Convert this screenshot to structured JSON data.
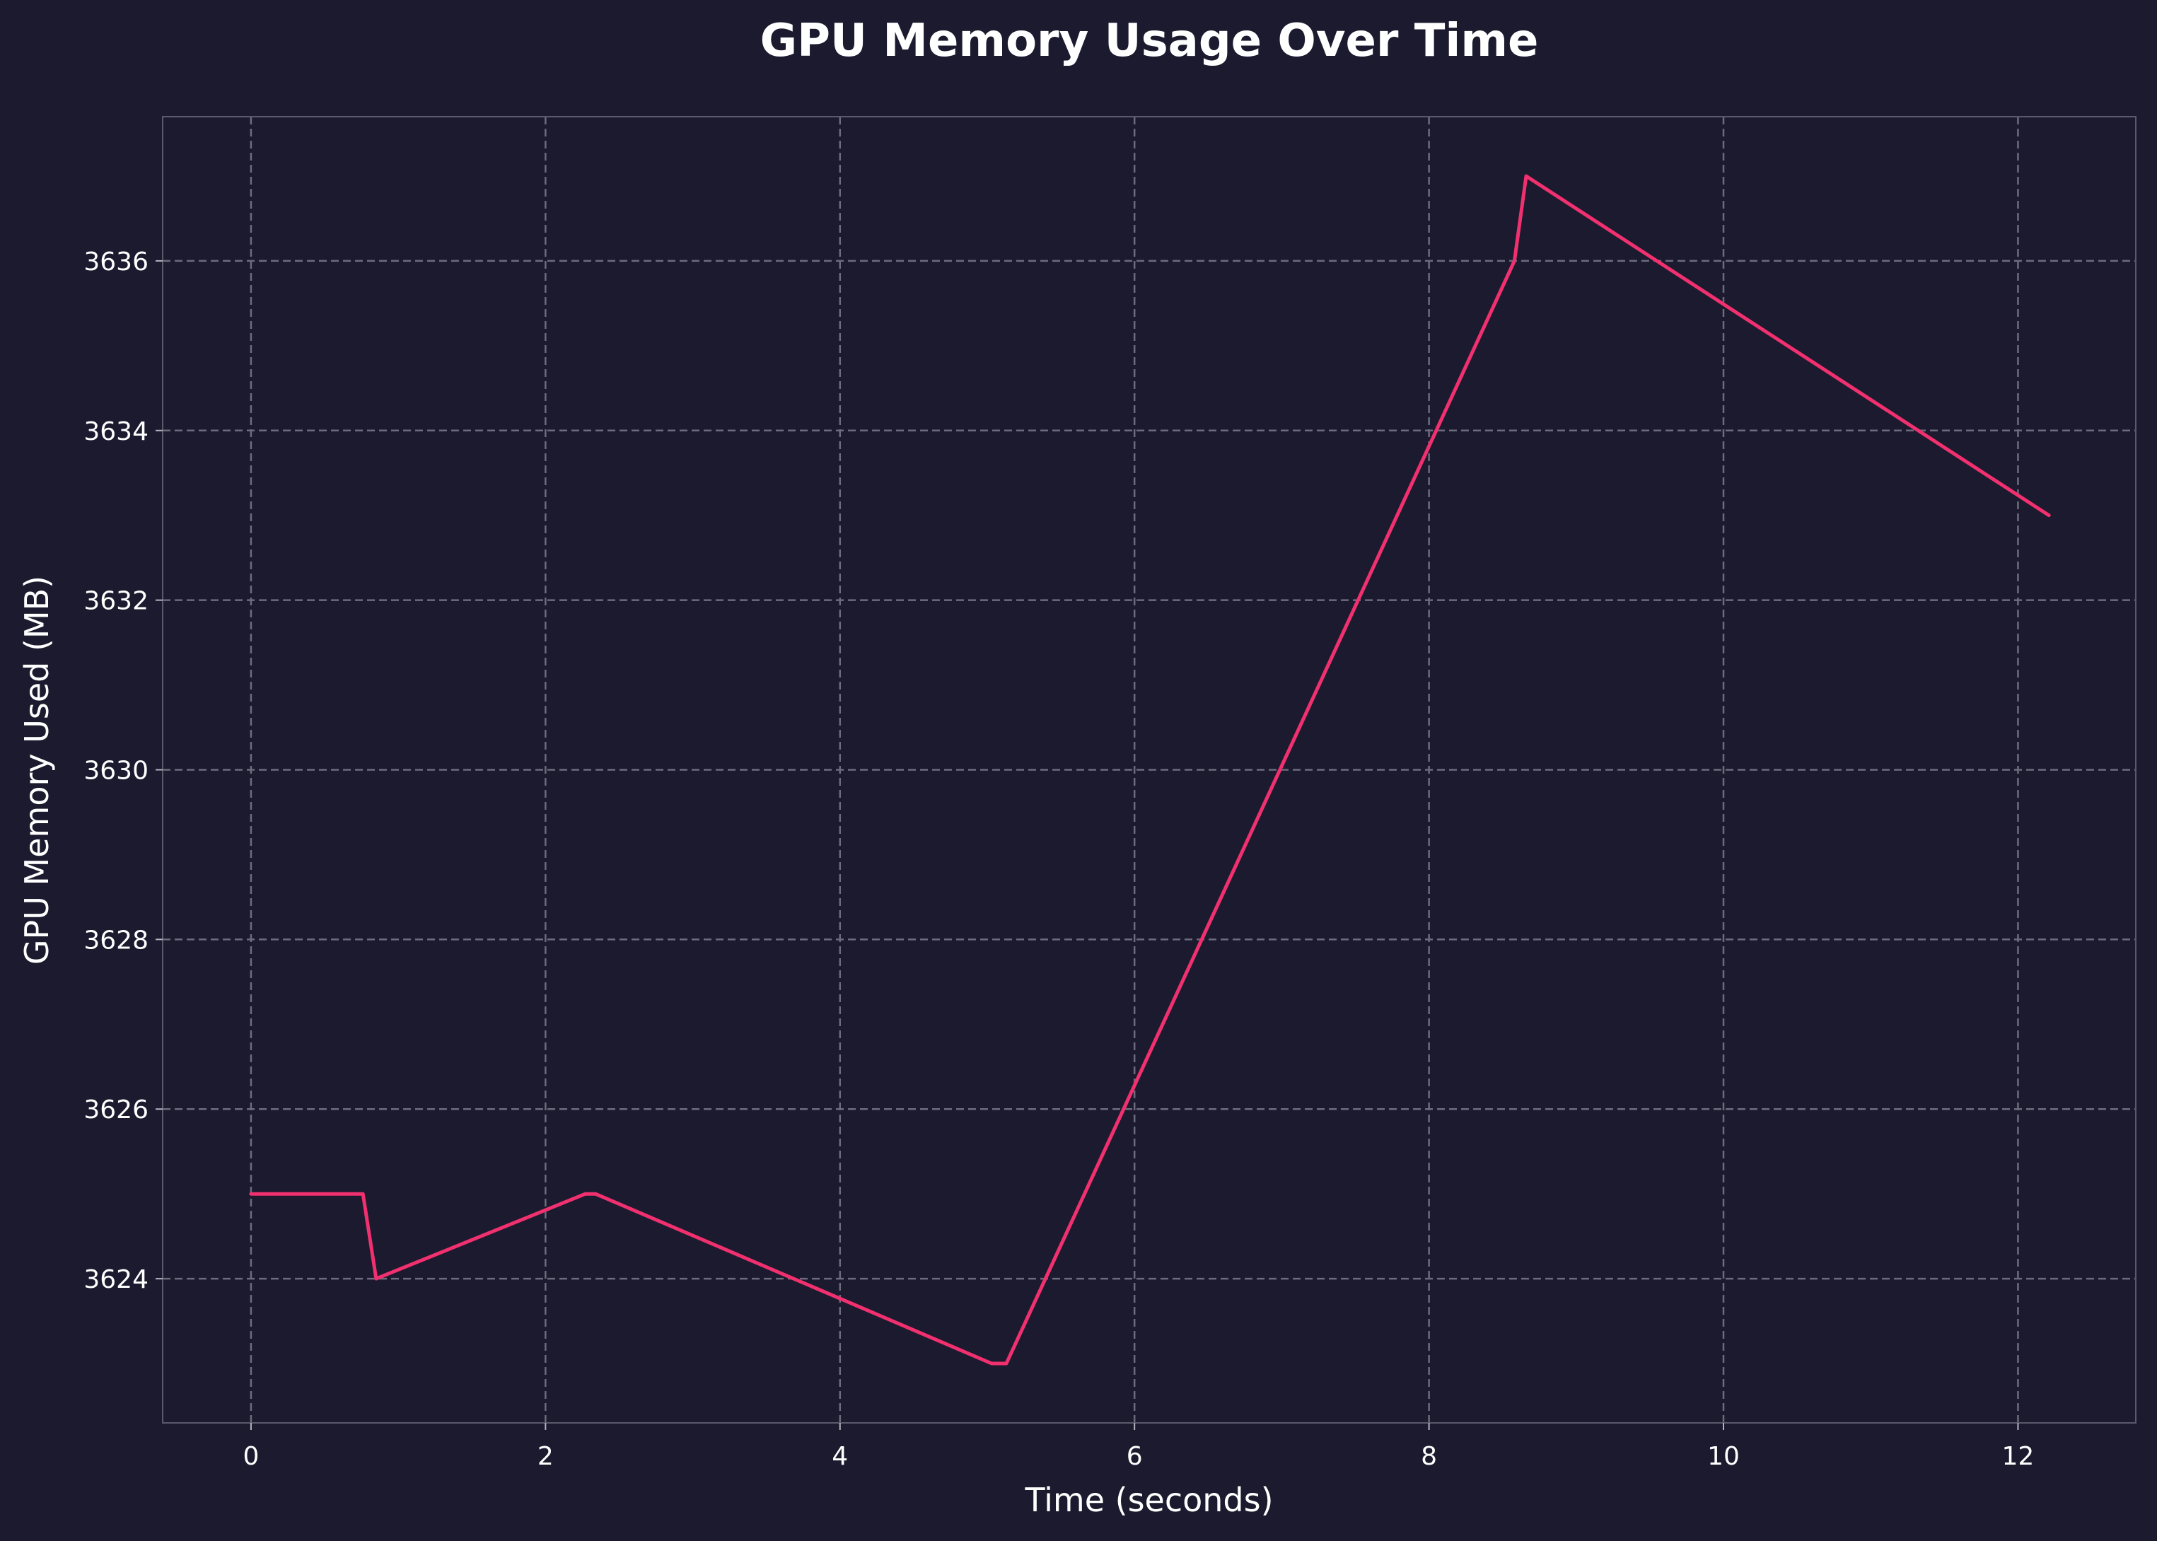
{
  "chart_data": {
    "type": "line",
    "title": "GPU Memory Usage Over Time",
    "xlabel": "Time (seconds)",
    "ylabel": "GPU Memory Used (MB)",
    "xlim": [
      -0.6,
      12.8
    ],
    "ylim": [
      3622.3,
      3637.7
    ],
    "xticks": [
      0,
      2,
      4,
      6,
      8,
      10,
      12
    ],
    "yticks": [
      3624,
      3626,
      3628,
      3630,
      3632,
      3634,
      3636
    ],
    "grid": true,
    "colors": {
      "background": "#1b1a2e",
      "line": "#f0306f",
      "text": "#ffffff"
    },
    "series": [
      {
        "x": [
          0,
          0.76,
          0.85,
          2.27,
          2.34,
          5.03,
          5.13,
          8.58,
          8.66,
          12.21
        ],
        "y": [
          3625,
          3625,
          3624,
          3625,
          3625,
          3623,
          3623,
          3636,
          3637,
          3633
        ]
      }
    ]
  }
}
